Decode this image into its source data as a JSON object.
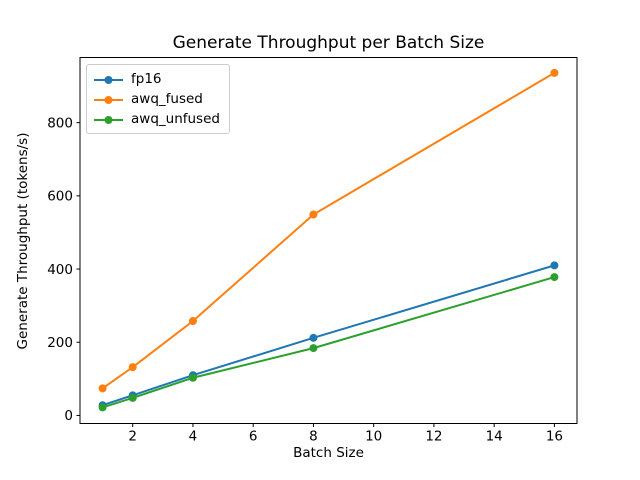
{
  "chart_data": {
    "type": "line",
    "title": "Generate Throughput per Batch Size",
    "xlabel": "Batch Size",
    "ylabel": "Generate Throughput (tokens/s)",
    "x": [
      1,
      2,
      4,
      8,
      16
    ],
    "series": [
      {
        "name": "fp16",
        "color": "#1f77b4",
        "values": [
          28,
          55,
          110,
          212,
          410
        ]
      },
      {
        "name": "awq_fused",
        "color": "#ff7f0e",
        "values": [
          74,
          132,
          258,
          549,
          936
        ]
      },
      {
        "name": "awq_unfused",
        "color": "#2ca02c",
        "values": [
          22,
          48,
          103,
          184,
          378
        ]
      }
    ],
    "xticks": [
      2,
      4,
      6,
      8,
      10,
      12,
      14,
      16
    ],
    "yticks": [
      0,
      200,
      400,
      600,
      800
    ],
    "xlim": [
      0.25,
      16.75
    ],
    "ylim": [
      -22,
      978
    ],
    "grid": false,
    "legend_position": "upper left",
    "marker": "o",
    "background": "#ffffff",
    "spine_color": "#000000"
  }
}
